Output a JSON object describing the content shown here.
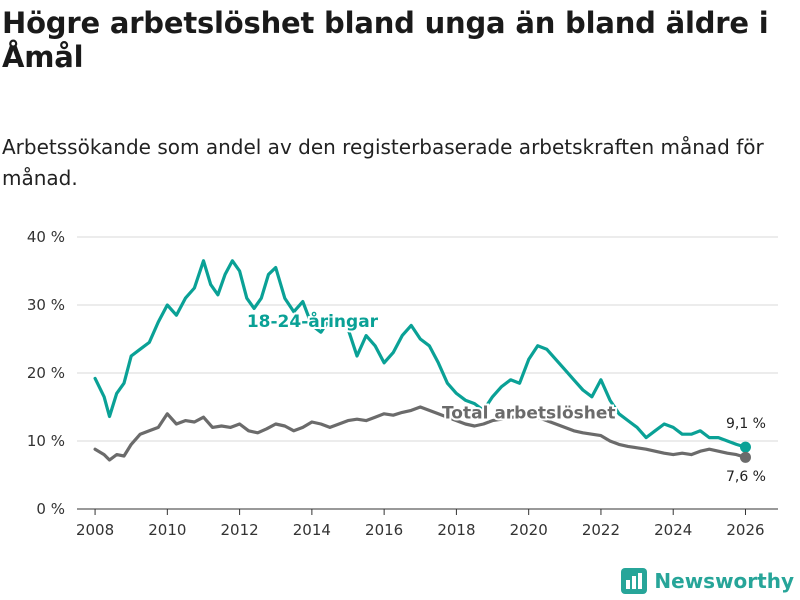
{
  "title": "Högre arbetslöshet bland unga än bland äldre i Åmål",
  "subtitle": "Arbetssökande som andel av den registerbaserade arbetskraften månad för månad.",
  "brand": "Newsworthy",
  "colors": {
    "teal": "#0aa196",
    "gray": "#6b6b6b",
    "grid": "#d9d9d9",
    "brand": "#27a599"
  },
  "chart_data": {
    "type": "line",
    "title": "Högre arbetslöshet bland unga än bland äldre i Åmål",
    "xlabel": "",
    "ylabel": "",
    "xlim": [
      2007.5,
      2026.9
    ],
    "ylim": [
      0,
      40
    ],
    "yticks": [
      0,
      10,
      20,
      30,
      40
    ],
    "ytick_labels": [
      "0 %",
      "10 %",
      "20 %",
      "30 %",
      "40 %"
    ],
    "xticks": [
      2008,
      2010,
      2012,
      2014,
      2016,
      2018,
      2020,
      2022,
      2024,
      2026
    ],
    "xtick_labels": [
      "2008",
      "2010",
      "2012",
      "2014",
      "2016",
      "2018",
      "2020",
      "2022",
      "2024",
      "2026"
    ],
    "grid": true,
    "series": [
      {
        "name": "18-24-åringar",
        "label": "18-24-åringar",
        "color": "#0aa196",
        "end_label": "9,1 %",
        "x": [
          2008.0,
          2008.25,
          2008.4,
          2008.6,
          2008.8,
          2009.0,
          2009.25,
          2009.5,
          2009.75,
          2010.0,
          2010.25,
          2010.5,
          2010.75,
          2011.0,
          2011.2,
          2011.4,
          2011.6,
          2011.8,
          2012.0,
          2012.2,
          2012.4,
          2012.6,
          2012.8,
          2013.0,
          2013.25,
          2013.5,
          2013.75,
          2014.0,
          2014.25,
          2014.5,
          2014.75,
          2015.0,
          2015.25,
          2015.5,
          2015.75,
          2016.0,
          2016.25,
          2016.5,
          2016.75,
          2017.0,
          2017.25,
          2017.5,
          2017.75,
          2018.0,
          2018.25,
          2018.5,
          2018.75,
          2019.0,
          2019.25,
          2019.5,
          2019.75,
          2020.0,
          2020.25,
          2020.5,
          2020.75,
          2021.0,
          2021.25,
          2021.5,
          2021.75,
          2022.0,
          2022.25,
          2022.5,
          2022.75,
          2023.0,
          2023.25,
          2023.5,
          2023.75,
          2024.0,
          2024.25,
          2024.5,
          2024.75,
          2025.0,
          2025.25,
          2025.5,
          2025.75,
          2026.0
        ],
        "values": [
          19.2,
          16.5,
          13.6,
          17.0,
          18.5,
          22.5,
          23.5,
          24.5,
          27.5,
          30.0,
          28.5,
          31.0,
          32.5,
          36.5,
          33.0,
          31.5,
          34.5,
          36.5,
          35.0,
          31.0,
          29.5,
          31.0,
          34.5,
          35.5,
          31.0,
          29.0,
          30.5,
          27.0,
          26.0,
          28.0,
          27.5,
          26.5,
          22.5,
          25.5,
          24.0,
          21.5,
          23.0,
          25.5,
          27.0,
          25.0,
          24.0,
          21.5,
          18.5,
          17.0,
          16.0,
          15.5,
          14.5,
          16.5,
          18.0,
          19.0,
          18.5,
          22.0,
          24.0,
          23.5,
          22.0,
          20.5,
          19.0,
          17.5,
          16.5,
          19.0,
          16.0,
          14.0,
          13.0,
          12.0,
          10.5,
          11.5,
          12.5,
          12.0,
          11.0,
          11.0,
          11.5,
          10.5,
          10.5,
          10.0,
          9.5,
          9.1
        ]
      },
      {
        "name": "Total arbetslöshet",
        "label": "Total arbetslöshet",
        "color": "#6b6b6b",
        "end_label": "7,6 %",
        "x": [
          2008.0,
          2008.25,
          2008.4,
          2008.6,
          2008.8,
          2009.0,
          2009.25,
          2009.5,
          2009.75,
          2010.0,
          2010.25,
          2010.5,
          2010.75,
          2011.0,
          2011.25,
          2011.5,
          2011.75,
          2012.0,
          2012.25,
          2012.5,
          2012.75,
          2013.0,
          2013.25,
          2013.5,
          2013.75,
          2014.0,
          2014.25,
          2014.5,
          2014.75,
          2015.0,
          2015.25,
          2015.5,
          2015.75,
          2016.0,
          2016.25,
          2016.5,
          2016.75,
          2017.0,
          2017.25,
          2017.5,
          2017.75,
          2018.0,
          2018.25,
          2018.5,
          2018.75,
          2019.0,
          2019.25,
          2019.5,
          2019.75,
          2020.0,
          2020.25,
          2020.5,
          2020.75,
          2021.0,
          2021.25,
          2021.5,
          2021.75,
          2022.0,
          2022.25,
          2022.5,
          2022.75,
          2023.0,
          2023.25,
          2023.5,
          2023.75,
          2024.0,
          2024.25,
          2024.5,
          2024.75,
          2025.0,
          2025.25,
          2025.5,
          2025.75,
          2026.0
        ],
        "values": [
          8.8,
          8.0,
          7.2,
          8.0,
          7.8,
          9.5,
          11.0,
          11.5,
          12.0,
          14.0,
          12.5,
          13.0,
          12.8,
          13.5,
          12.0,
          12.2,
          12.0,
          12.5,
          11.5,
          11.2,
          11.8,
          12.5,
          12.2,
          11.5,
          12.0,
          12.8,
          12.5,
          12.0,
          12.5,
          13.0,
          13.2,
          13.0,
          13.5,
          14.0,
          13.8,
          14.2,
          14.5,
          15.0,
          14.5,
          14.0,
          13.5,
          13.0,
          12.5,
          12.2,
          12.5,
          13.0,
          13.2,
          13.5,
          13.5,
          14.0,
          13.5,
          13.0,
          12.5,
          12.0,
          11.5,
          11.2,
          11.0,
          10.8,
          10.0,
          9.5,
          9.2,
          9.0,
          8.8,
          8.5,
          8.2,
          8.0,
          8.2,
          8.0,
          8.5,
          8.8,
          8.5,
          8.2,
          8.0,
          7.6
        ]
      }
    ]
  }
}
